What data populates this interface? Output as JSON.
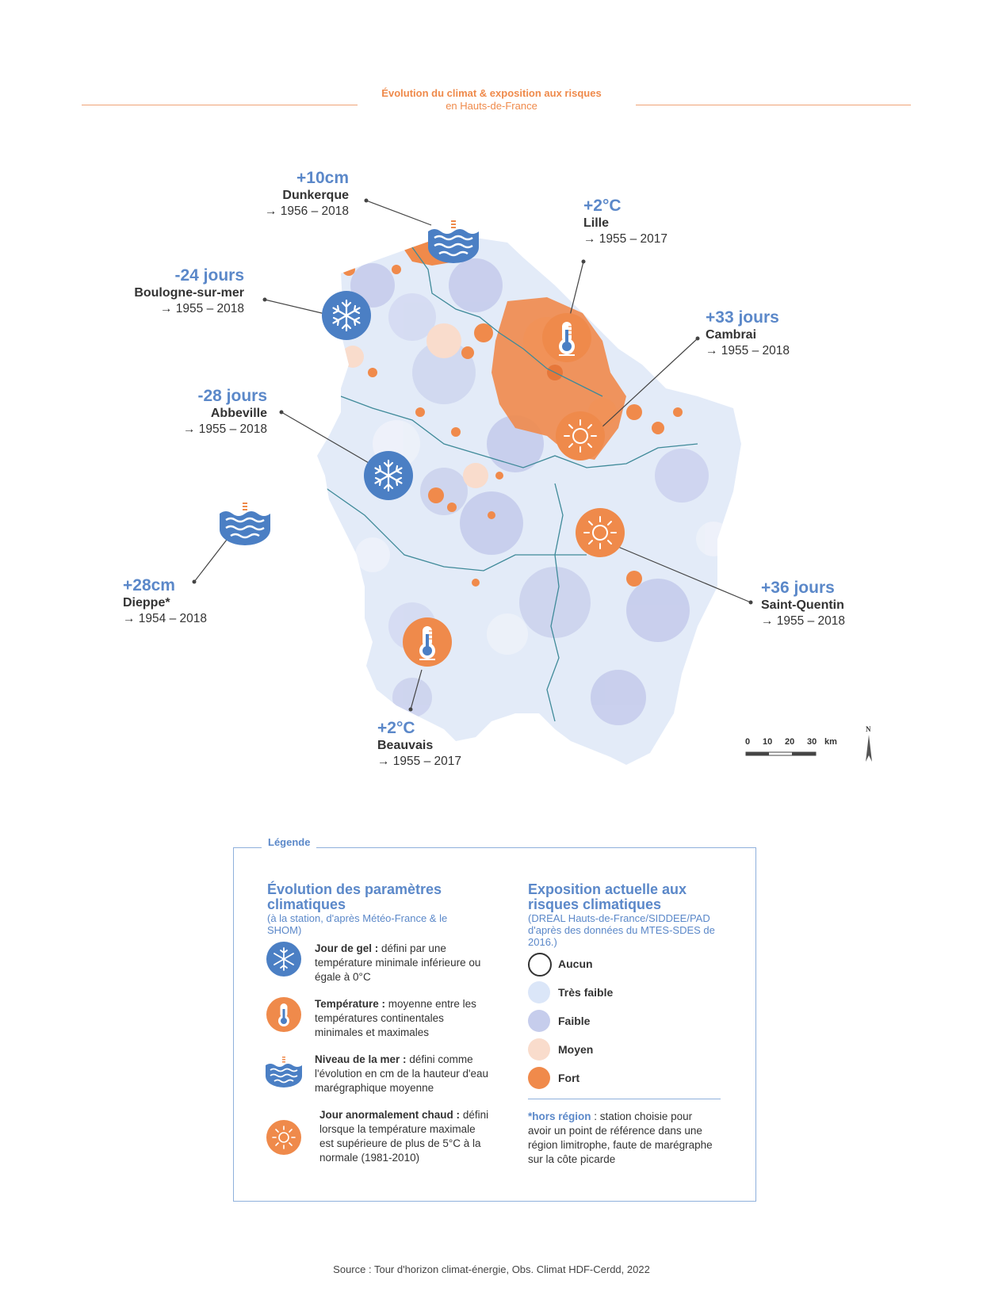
{
  "header": {
    "title": "Évolution du climat & exposition aux risques",
    "subtitle": "en Hauts-de-France"
  },
  "colors": {
    "accent_orange": "#ef8a4b",
    "accent_blue": "#5b88c9",
    "risk_none": "#ffffff",
    "risk_very_low": "#dbe6f8",
    "risk_low": "#c6cdec",
    "risk_medium": "#f9dccc",
    "risk_high": "#f08a4b"
  },
  "annotations": {
    "dunkerque": {
      "value": "+10cm",
      "name": "Dunkerque",
      "period": "→ 1956 – 2018",
      "icon": "sea-level-icon"
    },
    "lille": {
      "value": "+2°C",
      "name": "Lille",
      "period": "→ 1955 – 2017",
      "icon": "thermometer-icon"
    },
    "boulogne": {
      "value": "-24 jours",
      "name": "Boulogne-sur-mer",
      "period": "→ 1955 – 2018",
      "icon": "snowflake-icon"
    },
    "cambrai": {
      "value": "+33 jours",
      "name": "Cambrai",
      "period": "→ 1955 – 2018",
      "icon": "sun-icon"
    },
    "abbeville": {
      "value": "-28 jours",
      "name": "Abbeville",
      "period": "→ 1955 – 2018",
      "icon": "snowflake-icon"
    },
    "dieppe": {
      "value": "+28cm",
      "name": "Dieppe*",
      "period": "→ 1954 – 2018",
      "icon": "sea-level-icon"
    },
    "saint_quentin": {
      "value": "+36 jours",
      "name": "Saint-Quentin",
      "period": "→ 1955 – 2018",
      "icon": "sun-icon"
    },
    "beauvais": {
      "value": "+2°C",
      "name": "Beauvais",
      "period": "→ 1955 – 2017",
      "icon": "thermometer-icon"
    }
  },
  "scale": {
    "labels": [
      "0",
      "10",
      "20",
      "30"
    ],
    "unit": "km",
    "north": "N"
  },
  "legend": {
    "tag": "Légende",
    "left": {
      "heading": "Évolution des paramètres climatiques",
      "heading_note": "(à la station, d'après Météo-France & le SHOM)",
      "items": [
        {
          "icon": "snowflake-icon",
          "term": "Jour de gel :",
          "desc": "défini par une température minimale inférieure ou égale à 0°C"
        },
        {
          "icon": "thermometer-icon",
          "term": "Température :",
          "desc": "moyenne entre les températures continentales minimales et maximales"
        },
        {
          "icon": "sea-level-icon",
          "term": "Niveau de la mer :",
          "desc": "défini comme l'évolution en cm de la hauteur d'eau marégraphique moyenne"
        },
        {
          "icon": "sun-icon",
          "term": "Jour anormalement chaud :",
          "desc": "défini lorsque la température maximale est supérieure de plus de 5°C à la normale (1981-2010)"
        }
      ]
    },
    "right": {
      "heading": "Exposition actuelle aux risques climatiques",
      "heading_note": "(DREAL Hauts-de-France/SIDDEE/PAD d'après des données du MTES-SDES de 2016.)",
      "classes": [
        "Aucun",
        "Très faible",
        "Faible",
        "Moyen",
        "Fort"
      ],
      "note_term": "*hors région",
      "note": ": station choisie pour avoir un point de référence dans une région limitrophe, faute de marégraphe sur la côte picarde"
    }
  },
  "source": "Source : Tour d'horizon climat-énergie, Obs. Climat HDF-Cerdd, 2022"
}
